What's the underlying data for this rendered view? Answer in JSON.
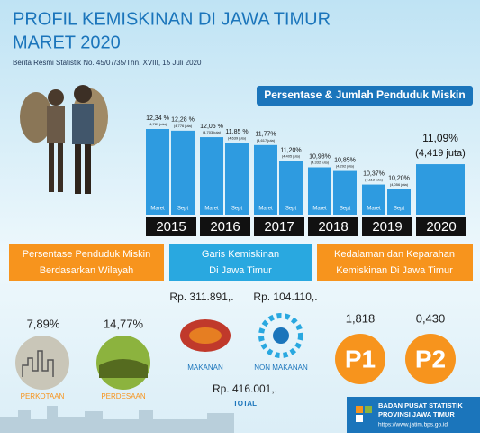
{
  "header": {
    "title_line1": "PROFIL KEMISKINAN DI JAWA TIMUR",
    "title_line2": "MARET 2020",
    "subtitle": "Berita Resmi Statistik No. 45/07/35/Thn. XVIII, 15 Juli 2020"
  },
  "chart_data": {
    "type": "bar",
    "title": "Persentase & Jumlah Penduduk Miskin",
    "color": "#2e9be0",
    "ylim": [
      9.3,
      12.5
    ],
    "groups": [
      {
        "year": "2015",
        "bars": [
          {
            "period": "Maret",
            "value": 12.34,
            "value_label": "12,34 %",
            "count_label": "(4,789 juta)"
          },
          {
            "period": "Sept",
            "value": 12.28,
            "value_label": "12,28 %",
            "count_label": "(4,776 juta)"
          }
        ]
      },
      {
        "year": "2016",
        "bars": [
          {
            "period": "Maret",
            "value": 12.05,
            "value_label": "12,05 %",
            "count_label": "(4,703 juta)"
          },
          {
            "period": "Sept",
            "value": 11.85,
            "value_label": "11,85 %",
            "count_label": "(4,639 juta)"
          }
        ]
      },
      {
        "year": "2017",
        "bars": [
          {
            "period": "Maret",
            "value": 11.77,
            "value_label": "11,77%",
            "count_label": "(4,617 juta)"
          },
          {
            "period": "Sept",
            "value": 11.2,
            "value_label": "11,20%",
            "count_label": "(4,405 juta)"
          }
        ]
      },
      {
        "year": "2018",
        "bars": [
          {
            "period": "Maret",
            "value": 10.98,
            "value_label": "10,98%",
            "count_label": "(4,332 juta)"
          },
          {
            "period": "Sept",
            "value": 10.85,
            "value_label": "10,85%",
            "count_label": "(4,292 juta)"
          }
        ]
      },
      {
        "year": "2019",
        "bars": [
          {
            "period": "Maret",
            "value": 10.37,
            "value_label": "10,37%",
            "count_label": "(4,112 juta)"
          },
          {
            "period": "Sept",
            "value": 10.2,
            "value_label": "10,20%",
            "count_label": "(4,056 juta)"
          }
        ]
      },
      {
        "year": "2020",
        "bars": [
          {
            "value": 11.09,
            "value_label": "11,09%",
            "count_label": "(4,419 juta)"
          }
        ]
      }
    ]
  },
  "wilayah": {
    "title_line1": "Persentase Penduduk Miskin",
    "title_line2": "Berdasarkan Wilayah",
    "kota_value": "7,89%",
    "kota_label": "PERKOTAAN",
    "desa_value": "14,77%",
    "desa_label": "PERDESAAN"
  },
  "garis": {
    "title_line1": "Garis Kemiskinan",
    "title_line2": "Di Jawa Timur",
    "makanan_value": "Rp. 311.891,.",
    "makanan_label": "MAKANAN",
    "nonmakanan_value": "Rp. 104.110,.",
    "nonmakanan_label": "NON MAKANAN",
    "total_value": "Rp. 416.001,.",
    "total_label": "TOTAL"
  },
  "kedalaman": {
    "title_line1": "Kedalaman dan Keparahan",
    "title_line2": "Kemiskinan Di Jawa Timur",
    "p1_value": "1,818",
    "p1_label": "P1",
    "p2_value": "0,430",
    "p2_label": "P2"
  },
  "footer": {
    "org_line1": "BADAN PUSAT STATISTIK",
    "org_line2": "PROVINSI JAWA TIMUR",
    "url": "https://www.jatim.bps.go.id"
  }
}
